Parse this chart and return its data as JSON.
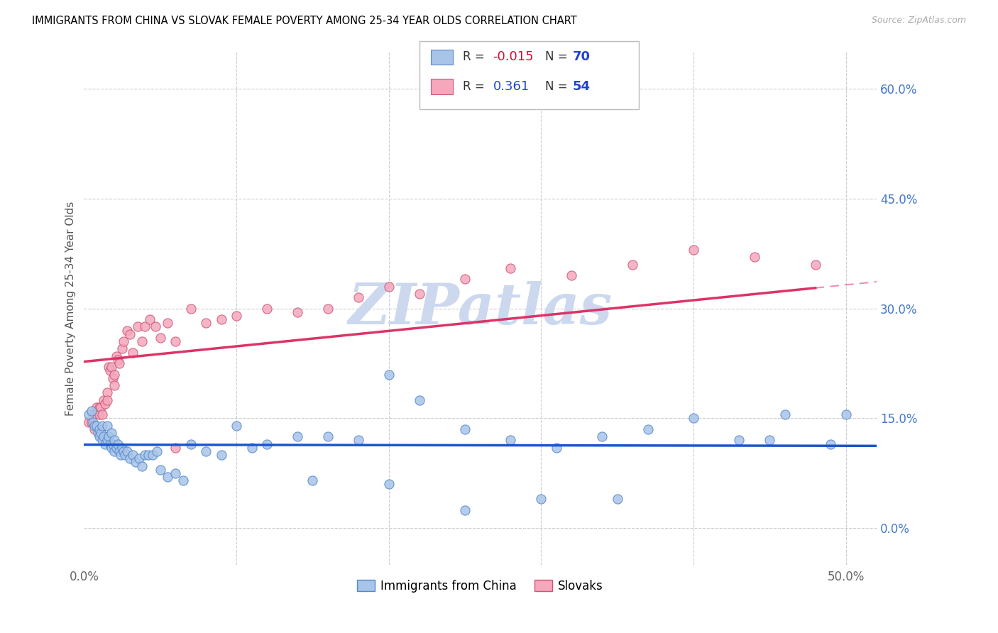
{
  "title": "IMMIGRANTS FROM CHINA VS SLOVAK FEMALE POVERTY AMONG 25-34 YEAR OLDS CORRELATION CHART",
  "source": "Source: ZipAtlas.com",
  "ylabel": "Female Poverty Among 25-34 Year Olds",
  "xlim": [
    0.0,
    0.52
  ],
  "ylim": [
    -0.05,
    0.65
  ],
  "xticks": [
    0.0,
    0.1,
    0.2,
    0.3,
    0.4,
    0.5
  ],
  "xticklabels": [
    "0.0%",
    "",
    "",
    "",
    "",
    "50.0%"
  ],
  "yticks_right": [
    0.0,
    0.15,
    0.3,
    0.45,
    0.6
  ],
  "ytick_right_labels": [
    "0.0%",
    "15.0%",
    "30.0%",
    "45.0%",
    "60.0%"
  ],
  "china_fill": "#a8c4e8",
  "china_edge": "#5588cc",
  "slovak_fill": "#f5a8bc",
  "slovak_edge": "#cc5577",
  "china_trend_color": "#1a55cc",
  "slovak_trend_color": "#dd3366",
  "watermark": "ZIPatlas",
  "watermark_color": "#ccd8ee",
  "grid_color": "#cccccc",
  "china_R": -0.015,
  "china_N": 70,
  "slovak_R": 0.361,
  "slovak_N": 54,
  "china_x": [
    0.003,
    0.005,
    0.006,
    0.007,
    0.008,
    0.009,
    0.01,
    0.01,
    0.011,
    0.012,
    0.012,
    0.013,
    0.014,
    0.015,
    0.015,
    0.016,
    0.017,
    0.018,
    0.018,
    0.019,
    0.02,
    0.02,
    0.021,
    0.022,
    0.023,
    0.024,
    0.025,
    0.026,
    0.027,
    0.028,
    0.03,
    0.032,
    0.034,
    0.036,
    0.038,
    0.04,
    0.042,
    0.045,
    0.048,
    0.05,
    0.055,
    0.06,
    0.065,
    0.07,
    0.08,
    0.09,
    0.1,
    0.11,
    0.12,
    0.14,
    0.16,
    0.18,
    0.2,
    0.22,
    0.25,
    0.28,
    0.31,
    0.34,
    0.37,
    0.4,
    0.43,
    0.46,
    0.49,
    0.5,
    0.3,
    0.25,
    0.35,
    0.2,
    0.15,
    0.45
  ],
  "china_y": [
    0.155,
    0.16,
    0.145,
    0.14,
    0.14,
    0.13,
    0.135,
    0.125,
    0.13,
    0.14,
    0.12,
    0.125,
    0.115,
    0.14,
    0.12,
    0.125,
    0.115,
    0.13,
    0.11,
    0.115,
    0.12,
    0.105,
    0.11,
    0.115,
    0.105,
    0.1,
    0.11,
    0.105,
    0.1,
    0.105,
    0.095,
    0.1,
    0.09,
    0.095,
    0.085,
    0.1,
    0.1,
    0.1,
    0.105,
    0.08,
    0.07,
    0.075,
    0.065,
    0.115,
    0.105,
    0.1,
    0.14,
    0.11,
    0.115,
    0.125,
    0.125,
    0.12,
    0.21,
    0.175,
    0.135,
    0.12,
    0.11,
    0.125,
    0.135,
    0.15,
    0.12,
    0.155,
    0.115,
    0.155,
    0.04,
    0.025,
    0.04,
    0.06,
    0.065,
    0.12
  ],
  "slovak_x": [
    0.003,
    0.005,
    0.006,
    0.007,
    0.008,
    0.009,
    0.01,
    0.01,
    0.011,
    0.012,
    0.013,
    0.014,
    0.015,
    0.015,
    0.016,
    0.017,
    0.018,
    0.019,
    0.02,
    0.02,
    0.021,
    0.022,
    0.023,
    0.025,
    0.026,
    0.028,
    0.03,
    0.032,
    0.035,
    0.038,
    0.04,
    0.043,
    0.047,
    0.05,
    0.055,
    0.06,
    0.07,
    0.08,
    0.09,
    0.1,
    0.12,
    0.14,
    0.16,
    0.18,
    0.2,
    0.22,
    0.25,
    0.28,
    0.32,
    0.36,
    0.4,
    0.44,
    0.48,
    0.06
  ],
  "slovak_y": [
    0.145,
    0.145,
    0.155,
    0.135,
    0.165,
    0.16,
    0.165,
    0.155,
    0.165,
    0.155,
    0.175,
    0.17,
    0.185,
    0.175,
    0.22,
    0.215,
    0.22,
    0.205,
    0.195,
    0.21,
    0.235,
    0.23,
    0.225,
    0.245,
    0.255,
    0.27,
    0.265,
    0.24,
    0.275,
    0.255,
    0.275,
    0.285,
    0.275,
    0.26,
    0.28,
    0.255,
    0.3,
    0.28,
    0.285,
    0.29,
    0.3,
    0.295,
    0.3,
    0.315,
    0.33,
    0.32,
    0.34,
    0.355,
    0.345,
    0.36,
    0.38,
    0.37,
    0.36,
    0.11
  ]
}
